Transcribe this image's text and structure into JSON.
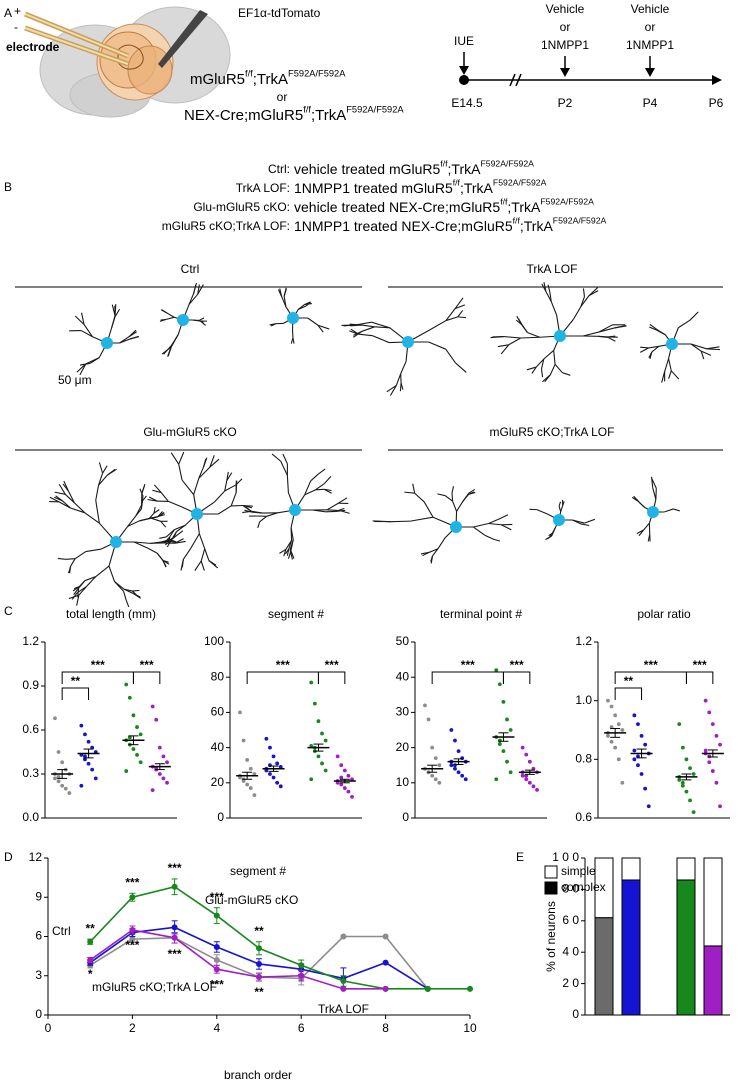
{
  "panel_labels": [
    "A",
    "B",
    "C",
    "D",
    "E"
  ],
  "panel_a": {
    "construct": "EF1α-tdTomato",
    "electrode_plus": "+",
    "electrode_minus": "-",
    "electrode": "electrode",
    "genotype_1": [
      "mGluR5",
      "f/f",
      ";TrkA",
      "F592A/F592A"
    ],
    "or": "or",
    "genotype_2": [
      "NEX-Cre;mGluR5",
      "f/f",
      ";TrkA",
      "F592A/F592A"
    ],
    "timeline": {
      "event": "IUE",
      "treatment": [
        "Vehicle",
        "or",
        "1NMPP1"
      ],
      "ages": [
        "E14.5",
        "P2",
        "P4",
        "P6"
      ]
    }
  },
  "panel_b": {
    "legend": [
      {
        "label": "Ctrl:",
        "color": "#7f7f7f",
        "description": [
          "vehicle treated mGluR5",
          "f/f",
          ";TrkA",
          "F592A/F592A"
        ]
      },
      {
        "label": "TrkA LOF:",
        "color": "#1414d2",
        "description": [
          "1NMPP1 treated mGluR5",
          "f/f",
          ";TrkA",
          "F592A/F592A"
        ]
      },
      {
        "label": "Glu-mGluR5 cKO:",
        "color": "#17881b",
        "description": [
          "vehicle treated NEX-Cre;mGluR5",
          "f/f",
          ";TrkA",
          "F592A/F592A"
        ]
      },
      {
        "label": "mGluR5 cKO;TrkA LOF:",
        "color": "#a01fc4",
        "description": [
          "1NMPP1 treated NEX-Cre;mGluR5",
          "f/f",
          ";TrkA",
          "F592A/F592A"
        ]
      }
    ],
    "groups": [
      {
        "title": "Ctrl",
        "color": "#7f7f7f"
      },
      {
        "title": "TrkA LOF",
        "color": "#1414d2"
      },
      {
        "title": "Glu-mGluR5 cKO",
        "color": "#17881b"
      },
      {
        "title": "mGluR5 cKO;TrkA LOF",
        "color": "#a01fc4"
      }
    ],
    "scale_bar": "50 μm"
  },
  "chart_data": [
    {
      "type": "dot",
      "title": "total length (mm)",
      "ylim": [
        0,
        1.2
      ],
      "yticks": [
        {
          "value": 0,
          "label": "0.0"
        },
        0.3,
        0.6,
        0.9,
        1.2
      ],
      "groups": [
        {
          "color": "#8c8c8c",
          "values": [
            0.68,
            0.45,
            0.38,
            0.33,
            0.3,
            0.27,
            0.25,
            0.22,
            0.2,
            0.17,
            0.3,
            0.28
          ],
          "mean": 0.3,
          "sem": 0.03
        },
        {
          "color": "#1414d2",
          "values": [
            0.63,
            0.57,
            0.52,
            0.48,
            0.45,
            0.43,
            0.4,
            0.37,
            0.33,
            0.27,
            0.22,
            0.42
          ],
          "mean": 0.44,
          "sem": 0.03
        },
        {
          "color": "#17881b",
          "values": [
            0.91,
            0.82,
            0.7,
            0.62,
            0.57,
            0.53,
            0.5,
            0.47,
            0.43,
            0.38,
            0.32,
            0.55
          ],
          "mean": 0.53,
          "sem": 0.03
        },
        {
          "color": "#a01fc4",
          "values": [
            0.76,
            0.67,
            0.48,
            0.42,
            0.38,
            0.35,
            0.33,
            0.3,
            0.27,
            0.24,
            0.19,
            0.34
          ],
          "mean": 0.35,
          "sem": 0.02
        }
      ],
      "brackets": [
        {
          "from": 0,
          "to": 2,
          "label": "***"
        },
        {
          "from": 2,
          "to": 3,
          "label": "***"
        },
        {
          "from": 0,
          "to": 1,
          "label": "**"
        }
      ]
    },
    {
      "type": "dot",
      "title": "segment #",
      "ylim": [
        0,
        100
      ],
      "yticks": [
        0,
        20,
        40,
        60,
        80,
        100
      ],
      "groups": [
        {
          "color": "#8c8c8c",
          "values": [
            60,
            44,
            33,
            28,
            25,
            23,
            21,
            19,
            17,
            13,
            24,
            22
          ],
          "mean": 24,
          "sem": 2
        },
        {
          "color": "#1414d2",
          "values": [
            45,
            40,
            35,
            31,
            29,
            27,
            25,
            23,
            20,
            18,
            28,
            30
          ],
          "mean": 28,
          "sem": 1.5
        },
        {
          "color": "#17881b",
          "values": [
            77,
            65,
            55,
            48,
            44,
            41,
            38,
            35,
            31,
            27,
            22,
            40
          ],
          "mean": 40,
          "sem": 2
        },
        {
          "color": "#a01fc4",
          "values": [
            35,
            30,
            27,
            24,
            22,
            20,
            19,
            17,
            15,
            12,
            21,
            23
          ],
          "mean": 21,
          "sem": 1
        }
      ],
      "brackets": [
        {
          "from": 0,
          "to": 2,
          "label": "***"
        },
        {
          "from": 2,
          "to": 3,
          "label": "***"
        }
      ]
    },
    {
      "type": "dot",
      "title": "terminal point #",
      "ylim": [
        0,
        50
      ],
      "yticks": [
        0,
        10,
        20,
        30,
        40,
        50
      ],
      "groups": [
        {
          "color": "#8c8c8c",
          "values": [
            32,
            28,
            20,
            17,
            15,
            14,
            13,
            12,
            11,
            10,
            14,
            13
          ],
          "mean": 14,
          "sem": 1
        },
        {
          "color": "#1414d2",
          "values": [
            25,
            22,
            19,
            17,
            16,
            15,
            14,
            13,
            12,
            11,
            16,
            15
          ],
          "mean": 16,
          "sem": 0.8
        },
        {
          "color": "#17881b",
          "values": [
            42,
            38,
            33,
            28,
            25,
            23,
            21,
            19,
            16,
            13,
            11,
            22
          ],
          "mean": 23,
          "sem": 1.2
        },
        {
          "color": "#a01fc4",
          "values": [
            20,
            18,
            16,
            14,
            13,
            12,
            11,
            10,
            9,
            8,
            13,
            12
          ],
          "mean": 13,
          "sem": 0.6
        }
      ],
      "brackets": [
        {
          "from": 0,
          "to": 2,
          "label": "***"
        },
        {
          "from": 2,
          "to": 3,
          "label": "***"
        }
      ]
    },
    {
      "type": "dot",
      "title": "polar ratio",
      "ylim": [
        0.6,
        1.2
      ],
      "yticks": [
        0.6,
        0.8,
        {
          "value": 1,
          "label": "1.0"
        },
        1.2
      ],
      "groups": [
        {
          "color": "#8c8c8c",
          "values": [
            1.0,
            0.98,
            0.95,
            0.92,
            0.9,
            0.88,
            0.86,
            0.84,
            0.8,
            0.72,
            0.89,
            0.91
          ],
          "mean": 0.89,
          "sem": 0.015
        },
        {
          "color": "#1414d2",
          "values": [
            0.95,
            0.92,
            0.88,
            0.85,
            0.82,
            0.8,
            0.78,
            0.75,
            0.7,
            0.64,
            0.83,
            0.81
          ],
          "mean": 0.82,
          "sem": 0.015
        },
        {
          "color": "#17881b",
          "values": [
            0.92,
            0.84,
            0.8,
            0.77,
            0.75,
            0.73,
            0.71,
            0.69,
            0.66,
            0.62,
            0.74,
            0.72
          ],
          "mean": 0.74,
          "sem": 0.01
        },
        {
          "color": "#a01fc4",
          "values": [
            1.0,
            0.96,
            0.92,
            0.88,
            0.85,
            0.82,
            0.79,
            0.76,
            0.72,
            0.64,
            0.83,
            0.81
          ],
          "mean": 0.82,
          "sem": 0.012
        }
      ],
      "brackets": [
        {
          "from": 0,
          "to": 2,
          "label": "***"
        },
        {
          "from": 2,
          "to": 3,
          "label": "***"
        },
        {
          "from": 0,
          "to": 1,
          "label": "**"
        }
      ]
    },
    {
      "type": "line",
      "title": "segment #",
      "xlabel": "branch order",
      "x": [
        1,
        2,
        3,
        4,
        5,
        6,
        7,
        8,
        9,
        10
      ],
      "xlim": [
        0,
        10
      ],
      "xticks": [
        0,
        2,
        4,
        6,
        8,
        10
      ],
      "ylim": [
        0,
        12
      ],
      "yticks": [
        0,
        3,
        6,
        9,
        12
      ],
      "series": [
        {
          "name": "Ctrl",
          "color": "#8c8c8c",
          "values": [
            3.8,
            5.8,
            5.9,
            4.2,
            2.9,
            2.8,
            6,
            6,
            2,
            null
          ],
          "errors": [
            0.2,
            0.4,
            0.4,
            0.4,
            0.3,
            0.5,
            null,
            null,
            null,
            null
          ]
        },
        {
          "name": "TrkA LOF",
          "color": "#1414d2",
          "values": [
            4.0,
            6.3,
            6.7,
            5.2,
            3.9,
            3.5,
            2.8,
            4,
            2,
            null
          ],
          "errors": [
            0.2,
            0.3,
            0.5,
            0.4,
            0.4,
            0.4,
            0.8,
            null,
            null,
            null
          ]
        },
        {
          "name": "Glu-mGluR5 cKO",
          "color": "#17881b",
          "values": [
            5.6,
            9.0,
            9.8,
            7.6,
            5.1,
            3.8,
            2.6,
            2,
            2,
            2
          ],
          "errors": [
            0.2,
            0.3,
            0.6,
            0.6,
            0.5,
            0.4,
            0.4,
            null,
            null,
            null
          ],
          "significance": [
            "**",
            "***",
            "***",
            "***",
            "**",
            null,
            null,
            null,
            null,
            null
          ]
        },
        {
          "name": "mGluR5 cKO;TrkA LOF",
          "color": "#a01fc4",
          "values": [
            4.2,
            6.5,
            5.9,
            3.5,
            2.9,
            3.0,
            2,
            2,
            null,
            null
          ],
          "errors": [
            0.2,
            0.3,
            0.4,
            0.3,
            0.3,
            0.4,
            null,
            null,
            null,
            null
          ],
          "significance": [
            "*",
            "***",
            "***",
            "***",
            "**",
            null,
            null,
            null,
            null,
            null
          ]
        }
      ]
    },
    {
      "type": "stacked_bar",
      "ylabel": "% of neurons",
      "categories": [
        null,
        null,
        null,
        null
      ],
      "ylim": [
        0,
        100
      ],
      "yticks": [
        0,
        {
          "value": 20,
          "label": "2 0"
        },
        {
          "value": 40,
          "label": "4 0"
        },
        {
          "value": 60,
          "label": "6 0"
        },
        {
          "value": 80,
          "label": "8 0"
        },
        {
          "value": 100,
          "label": "1 0 0"
        }
      ],
      "series": [
        {
          "name": "complex",
          "color": "#000000",
          "values": [
            62,
            86,
            86,
            44
          ],
          "bar_colors": [
            "#6b6b6b",
            "#1414d2",
            "#17881b",
            "#a01fc4"
          ]
        },
        {
          "name": "simple",
          "color": "#ffffff",
          "values": [
            38,
            14,
            14,
            56
          ]
        }
      ]
    }
  ]
}
